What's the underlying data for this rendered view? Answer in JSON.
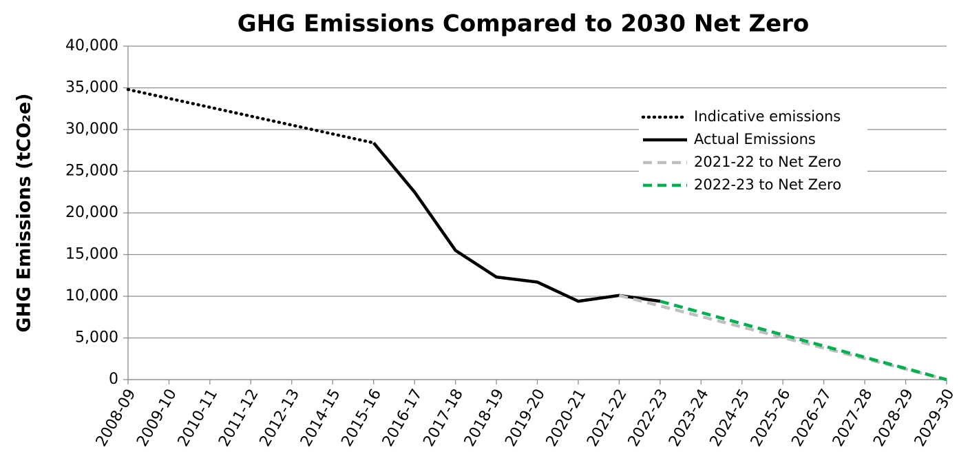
{
  "chart_data": {
    "type": "line",
    "title": "GHG Emissions Compared to 2030 Net Zero",
    "y_label": "GHG Emissions (tCO₂e)",
    "categories": [
      "2008-09",
      "2009-10",
      "2010-11",
      "2011-12",
      "2012-13",
      "2014-15",
      "2015-16",
      "2016-17",
      "2017-18",
      "2018-19",
      "2019-20",
      "2020-21",
      "2021-22",
      "2022-23",
      "2023-24",
      "2024-25",
      "2025-26",
      "2026-27",
      "2027-28",
      "2028-29",
      "2029-30"
    ],
    "series": [
      {
        "name": "Indicative emissions",
        "color": "#000000",
        "line_style": "dotted",
        "values": [
          34800,
          33733,
          32667,
          31600,
          30533,
          29467,
          28400,
          null,
          null,
          null,
          null,
          null,
          null,
          null,
          null,
          null,
          null,
          null,
          null,
          null,
          null
        ]
      },
      {
        "name": "Actual Emissions",
        "color": "#000000",
        "line_style": "solid",
        "values": [
          null,
          null,
          null,
          null,
          null,
          null,
          28400,
          22500,
          15500,
          12300,
          11700,
          9400,
          10100,
          9400,
          null,
          null,
          null,
          null,
          null,
          null,
          null
        ]
      },
      {
        "name": "2021-22 to Net Zero",
        "color": "#bfbfbf",
        "line_style": "dashed",
        "values": [
          null,
          null,
          null,
          null,
          null,
          null,
          null,
          null,
          null,
          null,
          null,
          null,
          10100,
          8838,
          7575,
          6313,
          5050,
          3788,
          2525,
          1263,
          0
        ]
      },
      {
        "name": "2022-23 to Net Zero",
        "color": "#00b050",
        "line_style": "dashed",
        "values": [
          null,
          null,
          null,
          null,
          null,
          null,
          null,
          null,
          null,
          null,
          null,
          null,
          null,
          9400,
          8057,
          6714,
          5371,
          4029,
          2686,
          1343,
          0
        ]
      }
    ],
    "ylim": [
      0,
      40000
    ],
    "yticks": [
      0,
      {
        "value": 5000,
        "label": "5,000"
      },
      {
        "value": 10000,
        "label": "10,000"
      },
      {
        "value": 15000,
        "label": "15,000"
      },
      {
        "value": 20000,
        "label": "20,000"
      },
      {
        "value": 25000,
        "label": "25,000"
      },
      {
        "value": 30000,
        "label": "30,000"
      },
      {
        "value": 35000,
        "label": "35,000"
      },
      {
        "value": 40000,
        "label": "40,000"
      }
    ],
    "grid": true,
    "legend": "upper right"
  }
}
